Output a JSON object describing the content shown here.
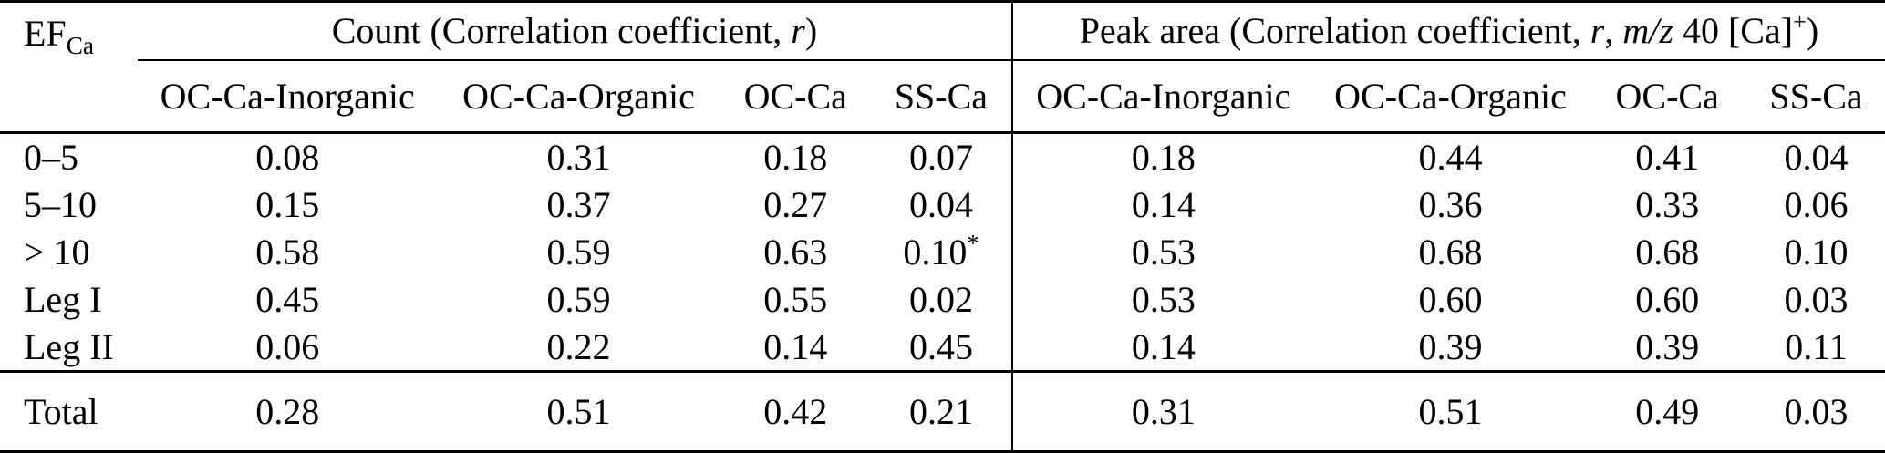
{
  "colors": {
    "text": "#000000",
    "rule": "#000000",
    "background": "#ffffff"
  },
  "header": {
    "corner": {
      "base": "EF",
      "sub": "Ca"
    },
    "count_group": {
      "prefix": "Count (Correlation coefficient, ",
      "r": "r",
      "suffix": ")"
    },
    "peak_group": {
      "prefix": "Peak area (Correlation coefficient, ",
      "r": "r",
      "comma": ", ",
      "mz": "m/z",
      "mid": " 40 [Ca]",
      "plus": "+",
      "suffix": ")"
    },
    "columns": [
      "OC-Ca-Inorganic",
      "OC-Ca-Organic",
      "OC-Ca",
      "SS-Ca",
      "OC-Ca-Inorganic",
      "OC-Ca-Organic",
      "OC-Ca",
      "SS-Ca"
    ]
  },
  "rows": [
    {
      "label": "0–5",
      "values": [
        "0.08",
        "0.31",
        "0.18",
        "0.07",
        "0.18",
        "0.44",
        "0.41",
        "0.04"
      ]
    },
    {
      "label": "5–10",
      "values": [
        "0.15",
        "0.37",
        "0.27",
        "0.04",
        "0.14",
        "0.36",
        "0.33",
        "0.06"
      ]
    },
    {
      "label": "> 10",
      "values": [
        "0.58",
        "0.59",
        "0.63",
        "0.10*",
        "0.53",
        "0.68",
        "0.68",
        "0.10"
      ]
    },
    {
      "label": "Leg I",
      "values": [
        "0.45",
        "0.59",
        "0.55",
        "0.02",
        "0.53",
        "0.60",
        "0.60",
        "0.03"
      ]
    },
    {
      "label": "Leg II",
      "values": [
        "0.06",
        "0.22",
        "0.14",
        "0.45",
        "0.14",
        "0.39",
        "0.39",
        "0.11"
      ]
    }
  ],
  "total": {
    "label": "Total",
    "values": [
      "0.28",
      "0.51",
      "0.42",
      "0.21",
      "0.31",
      "0.51",
      "0.49",
      "0.03"
    ]
  }
}
